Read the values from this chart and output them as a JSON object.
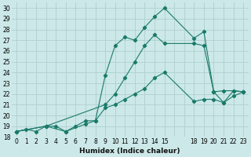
{
  "background_color": "#cce8e8",
  "grid_color": "#b0d0d0",
  "line_color": "#1a7a6a",
  "xlabel": "Humidex (Indice chaleur)",
  "xlim": [
    -0.5,
    23.5
  ],
  "ylim": [
    18.0,
    30.5
  ],
  "xtick_positions": [
    0,
    1,
    2,
    3,
    4,
    5,
    6,
    7,
    8,
    9,
    10,
    11,
    12,
    13,
    14,
    15,
    16,
    17,
    18,
    19,
    20,
    21,
    22,
    23
  ],
  "xtick_labels": [
    "0",
    "1",
    "2",
    "3",
    "4",
    "5",
    "6",
    "7",
    "8",
    "9",
    "10",
    "11",
    "12",
    "13",
    "14",
    "15",
    "",
    "",
    "18",
    "19",
    "20",
    "21",
    "22",
    "23"
  ],
  "ytick_positions": [
    18,
    19,
    20,
    21,
    22,
    23,
    24,
    25,
    26,
    27,
    28,
    29,
    30
  ],
  "ytick_labels": [
    "18",
    "19",
    "20",
    "21",
    "22",
    "23",
    "24",
    "25",
    "26",
    "27",
    "28",
    "29",
    "30"
  ],
  "series1_x": [
    0,
    1,
    2,
    3,
    4,
    5,
    6,
    7,
    8,
    9,
    10,
    11,
    12,
    13,
    14,
    15,
    18,
    19,
    20,
    21,
    22,
    23
  ],
  "series1_y": [
    18.5,
    18.7,
    18.5,
    19.0,
    19.0,
    18.5,
    19.0,
    19.5,
    19.5,
    23.7,
    26.5,
    27.3,
    27.0,
    28.2,
    29.2,
    30.0,
    27.2,
    27.8,
    22.2,
    21.2,
    22.3,
    22.2
  ],
  "series2_x": [
    0,
    3,
    9,
    10,
    11,
    12,
    13,
    14,
    15,
    18,
    19,
    20,
    21,
    22,
    23
  ],
  "series2_y": [
    18.5,
    19.0,
    21.0,
    22.0,
    23.5,
    25.0,
    26.5,
    27.5,
    26.7,
    26.7,
    26.5,
    22.2,
    22.3,
    22.3,
    22.2
  ],
  "series3_x": [
    0,
    3,
    5,
    7,
    8,
    9,
    10,
    11,
    12,
    13,
    14,
    15,
    18,
    19,
    20,
    21,
    22,
    23
  ],
  "series3_y": [
    18.5,
    19.0,
    18.5,
    19.2,
    19.5,
    20.7,
    21.0,
    21.5,
    22.0,
    22.5,
    23.5,
    24.0,
    21.3,
    21.5,
    21.5,
    21.2,
    21.8,
    22.2
  ]
}
